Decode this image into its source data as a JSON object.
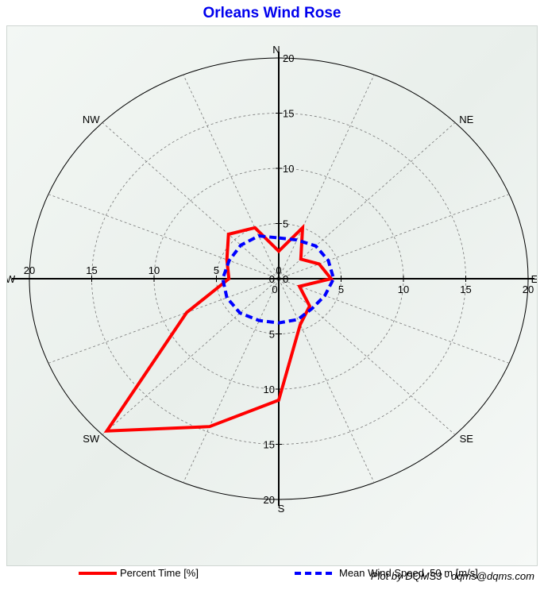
{
  "chart_data": {
    "type": "polar-line",
    "title": "Orleans Wind Rose",
    "directions": [
      "N",
      "NE",
      "E",
      "SE",
      "S",
      "SW",
      "W",
      "NW"
    ],
    "sector_angles_deg": [
      0,
      22.5,
      45,
      67.5,
      90,
      112.5,
      135,
      157.5,
      180,
      202.5,
      225,
      247.5,
      270,
      292.5,
      315,
      337.5
    ],
    "radial_ticks": [
      0,
      5,
      10,
      15,
      20
    ],
    "rmax": 20,
    "grid": true,
    "legend_position": "bottom",
    "series": [
      {
        "name": "Percent Time [%]",
        "color": "#ff0000",
        "style": "solid",
        "values": [
          2.5,
          5.0,
          2.5,
          3.5,
          4.2,
          1.8,
          3.5,
          4.5,
          11.0,
          14.5,
          19.5,
          8.0,
          4.0,
          4.5,
          5.7,
          5.0
        ]
      },
      {
        "name": "Mean Wind Speed, 50 m [m/s]",
        "color": "#0000ff",
        "style": "dashed",
        "values": [
          3.7,
          3.8,
          4.2,
          4.3,
          4.4,
          4.0,
          3.8,
          4.0,
          4.0,
          4.1,
          4.4,
          4.5,
          4.5,
          4.3,
          4.3,
          4.2
        ]
      }
    ]
  },
  "credit": "Plot by DQMS3 - dqms@dqms.com"
}
